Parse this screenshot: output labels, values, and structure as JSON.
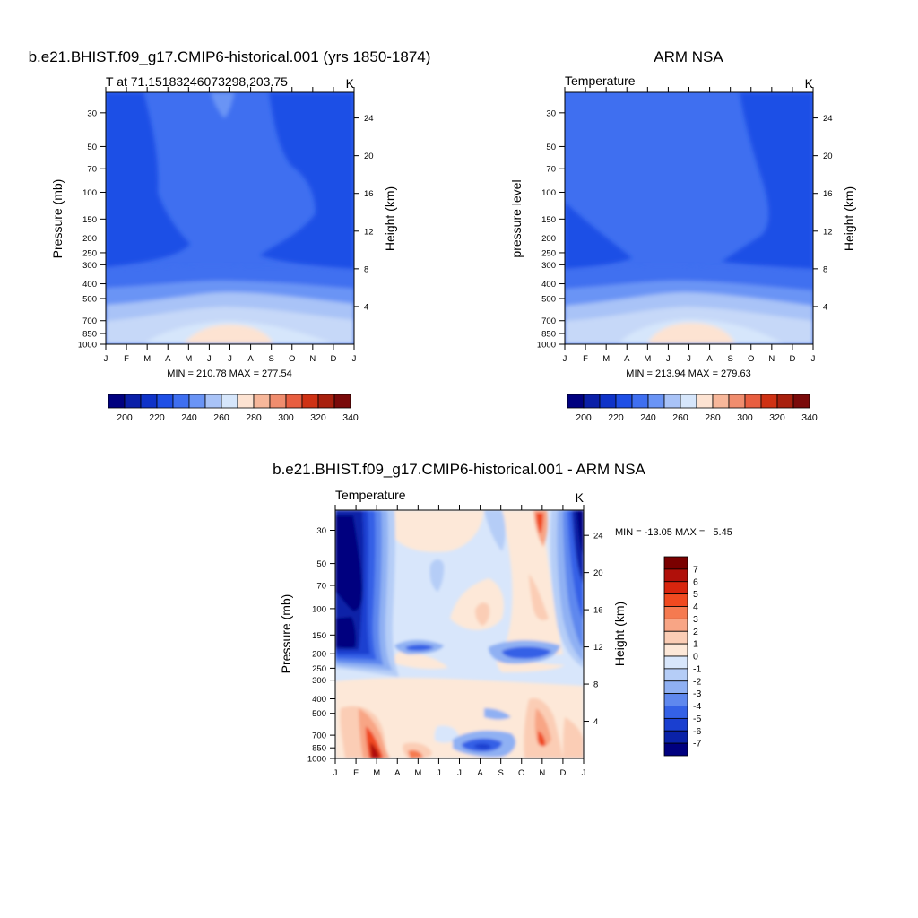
{
  "chart_data": [
    {
      "type": "contour",
      "title": "b.e21.BHIST.f09_g17.CMIP6-historical.001 (yrs 1850-1874)",
      "subtitle_left": "T at 71.15183246073298,203.75",
      "subtitle_right": "K",
      "ylabel": "Pressure (mb)",
      "ylabel_right": "Height (km)",
      "x_ticks": [
        "J",
        "F",
        "M",
        "A",
        "M",
        "J",
        "J",
        "A",
        "S",
        "O",
        "N",
        "D",
        "J"
      ],
      "y_ticks": [
        "30",
        "50",
        "70",
        "100",
        "150",
        "200",
        "250",
        "300",
        "400",
        "500",
        "700",
        "850",
        "1000"
      ],
      "y_ticks_right": [
        "24",
        "20",
        "16",
        "12",
        "8",
        "4"
      ],
      "stats": "MIN = 210.78 MAX = 277.54",
      "min": 210.78,
      "max": 277.54,
      "colorbar_labels": [
        "200",
        "220",
        "240",
        "260",
        "280",
        "300",
        "320",
        "340"
      ],
      "colorbar_orientation": "horizontal"
    },
    {
      "type": "contour",
      "title": "ARM NSA",
      "subtitle_left": "Temperature",
      "subtitle_right": "K",
      "ylabel": "pressure level",
      "ylabel_right": "Height (km)",
      "x_ticks": [
        "J",
        "F",
        "M",
        "A",
        "M",
        "J",
        "J",
        "A",
        "S",
        "O",
        "N",
        "D",
        "J"
      ],
      "y_ticks": [
        "30",
        "50",
        "70",
        "100",
        "150",
        "200",
        "250",
        "300",
        "400",
        "500",
        "700",
        "850",
        "1000"
      ],
      "y_ticks_right": [
        "24",
        "20",
        "16",
        "12",
        "8",
        "4"
      ],
      "stats": "MIN = 213.94 MAX = 279.63",
      "min": 213.94,
      "max": 279.63,
      "colorbar_labels": [
        "200",
        "220",
        "240",
        "260",
        "280",
        "300",
        "320",
        "340"
      ],
      "colorbar_orientation": "horizontal"
    },
    {
      "type": "contour",
      "title": "b.e21.BHIST.f09_g17.CMIP6-historical.001 - ARM NSA",
      "subtitle_left": "Temperature",
      "subtitle_right": "K",
      "ylabel": "Pressure (mb)",
      "ylabel_right": "Height (km)",
      "x_ticks": [
        "J",
        "F",
        "M",
        "A",
        "M",
        "J",
        "J",
        "A",
        "S",
        "O",
        "N",
        "D",
        "J"
      ],
      "y_ticks": [
        "30",
        "50",
        "70",
        "100",
        "150",
        "200",
        "250",
        "300",
        "400",
        "500",
        "700",
        "850",
        "1000"
      ],
      "y_ticks_right": [
        "24",
        "20",
        "16",
        "12",
        "8",
        "4"
      ],
      "stats": "MIN = -13.05 MAX =   5.45",
      "min": -13.05,
      "max": 5.45,
      "colorbar_labels": [
        "7",
        "6",
        "5",
        "4",
        "3",
        "2",
        "1",
        "0",
        "-1",
        "-2",
        "-3",
        "-4",
        "-5",
        "-6",
        "-7"
      ],
      "colorbar_orientation": "vertical"
    }
  ],
  "colors": {
    "temp_scale": [
      "#00007f",
      "#0a1fa8",
      "#0f33c8",
      "#1f4fe6",
      "#3f6ff0",
      "#6a94f5",
      "#a9c3f7",
      "#d6e6fb",
      "#fde3d2",
      "#f7b79a",
      "#f08d6e",
      "#e85e40",
      "#cf3214",
      "#a8200e",
      "#7a0a0a"
    ],
    "diff_scale": [
      "#7a0000",
      "#b0100a",
      "#d8250e",
      "#f04a20",
      "#f57a50",
      "#f8a585",
      "#fbcdb5",
      "#fde8d8",
      "#d8e6fb",
      "#b5cdf7",
      "#8fb0f3",
      "#5f88ee",
      "#3461e6",
      "#1a3fd0",
      "#0a22a8",
      "#00007f"
    ]
  }
}
